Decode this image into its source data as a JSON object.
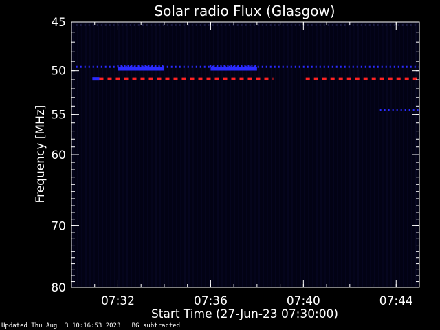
{
  "chart_data": {
    "type": "heatmap",
    "title": "Solar radio Flux (Glasgow)",
    "xlabel": "Start Time (27-Jun-23 07:30:00)",
    "ylabel": "Frequency [MHz]",
    "x_unit": "minutes after 07:30:00",
    "xlim": [
      0,
      15
    ],
    "ylim": [
      45,
      80
    ],
    "y_scale": "log",
    "y_inverted": true,
    "x_major_ticks": [
      {
        "value": 2,
        "label": "07:32"
      },
      {
        "value": 6,
        "label": "07:36"
      },
      {
        "value": 10,
        "label": "07:40"
      },
      {
        "value": 14,
        "label": "07:44"
      }
    ],
    "y_major_ticks": [
      {
        "value": 45,
        "label": "45"
      },
      {
        "value": 50,
        "label": "50"
      },
      {
        "value": 55,
        "label": "55"
      },
      {
        "value": 60,
        "label": "60"
      },
      {
        "value": 70,
        "label": "70"
      },
      {
        "value": 80,
        "label": "80"
      }
    ],
    "background_color": "#020214",
    "frame_color": "#ffffff",
    "colors": {
      "blue": "#2b2bff",
      "red": "#ff2222",
      "faint": "#1a1a40"
    },
    "features": [
      {
        "name": "dotted blue line",
        "y": 49.6,
        "x": [
          0.2,
          15
        ],
        "color": "blue",
        "style": "dotted"
      },
      {
        "name": "blue band",
        "y": 49.8,
        "x": [
          2,
          4
        ],
        "color": "blue",
        "style": "solid"
      },
      {
        "name": "blue band",
        "y": 49.8,
        "x": [
          6,
          8
        ],
        "color": "blue",
        "style": "solid"
      },
      {
        "name": "dashed red line",
        "y": 50.9,
        "x": [
          1.2,
          8.7
        ],
        "color": "red",
        "style": "dashed"
      },
      {
        "name": "dashed red line",
        "y": 50.9,
        "x": [
          10.1,
          15
        ],
        "color": "red",
        "style": "dashed"
      },
      {
        "name": "short blue segment",
        "y": 50.9,
        "x": [
          0.9,
          1.2
        ],
        "color": "blue",
        "style": "solid"
      },
      {
        "name": "dotted blue line",
        "y": 45.3,
        "x": [
          0.2,
          15
        ],
        "color": "faint",
        "style": "dotted"
      },
      {
        "name": "dotted blue line",
        "y": 54.5,
        "x": [
          13.3,
          15
        ],
        "color": "blue",
        "style": "dotted"
      }
    ]
  },
  "footer": {
    "updated": "Updated Thu Aug  3 10:16:53 2023",
    "note": "BG subtracted"
  }
}
